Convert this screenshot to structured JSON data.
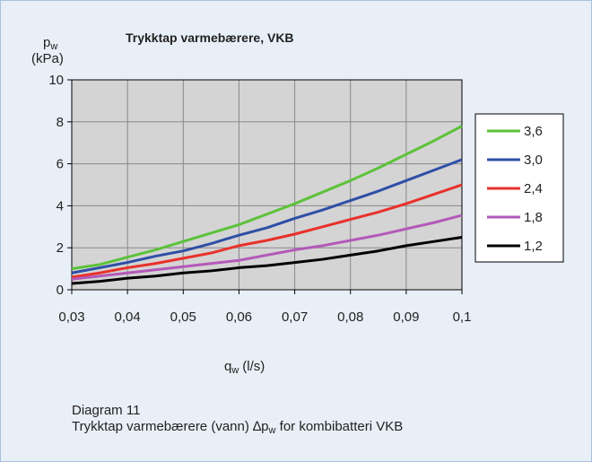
{
  "chart_data": {
    "type": "line",
    "title": "Trykktap varmebærere, VKB",
    "ylabel": {
      "main": "p",
      "sub": "w",
      "unit": "(kPa)"
    },
    "xlabel": {
      "main": "q",
      "sub": "w",
      "unit": "(l/s)"
    },
    "caption": {
      "line1": "Diagram 11",
      "line2": [
        "Trykktap varmebærere (vann) ∆p",
        "w",
        " for kombibatteri VKB"
      ]
    },
    "x": [
      0.03,
      0.035,
      0.04,
      0.045,
      0.05,
      0.055,
      0.06,
      0.065,
      0.07,
      0.075,
      0.08,
      0.085,
      0.09,
      0.095,
      0.1
    ],
    "xlim": [
      0.03,
      0.1
    ],
    "xticks": [
      {
        "value": 0.03,
        "label": "0,03"
      },
      {
        "value": 0.04,
        "label": "0,04"
      },
      {
        "value": 0.05,
        "label": "0,05"
      },
      {
        "value": 0.06,
        "label": "0,06"
      },
      {
        "value": 0.07,
        "label": "0,07"
      },
      {
        "value": 0.08,
        "label": "0,08"
      },
      {
        "value": 0.09,
        "label": "0,09"
      },
      {
        "value": 0.1,
        "label": "0,1"
      }
    ],
    "ylim": [
      0,
      10
    ],
    "yticks": [
      0,
      2,
      4,
      6,
      8,
      10
    ],
    "grid": true,
    "legend": "right",
    "series": [
      {
        "name": "3,6",
        "color": "#5cc23a",
        "values": [
          1.0,
          1.2,
          1.55,
          1.9,
          2.3,
          2.7,
          3.1,
          3.6,
          4.1,
          4.65,
          5.2,
          5.8,
          6.45,
          7.1,
          7.8
        ]
      },
      {
        "name": "3,0",
        "color": "#2e4fa6",
        "values": [
          0.8,
          1.05,
          1.3,
          1.6,
          1.85,
          2.2,
          2.6,
          2.95,
          3.4,
          3.8,
          4.25,
          4.7,
          5.2,
          5.7,
          6.2
        ]
      },
      {
        "name": "2,4",
        "color": "#e8312a",
        "values": [
          0.6,
          0.8,
          1.05,
          1.25,
          1.5,
          1.75,
          2.1,
          2.35,
          2.65,
          3.0,
          3.35,
          3.7,
          4.1,
          4.55,
          5.0
        ]
      },
      {
        "name": "1,8",
        "color": "#b35ab8",
        "values": [
          0.5,
          0.65,
          0.8,
          0.95,
          1.1,
          1.25,
          1.4,
          1.65,
          1.9,
          2.1,
          2.35,
          2.6,
          2.9,
          3.2,
          3.55
        ]
      },
      {
        "name": "1,2",
        "color": "#000000",
        "values": [
          0.3,
          0.4,
          0.55,
          0.65,
          0.8,
          0.9,
          1.05,
          1.15,
          1.3,
          1.45,
          1.65,
          1.85,
          2.1,
          2.3,
          2.5
        ]
      }
    ]
  }
}
